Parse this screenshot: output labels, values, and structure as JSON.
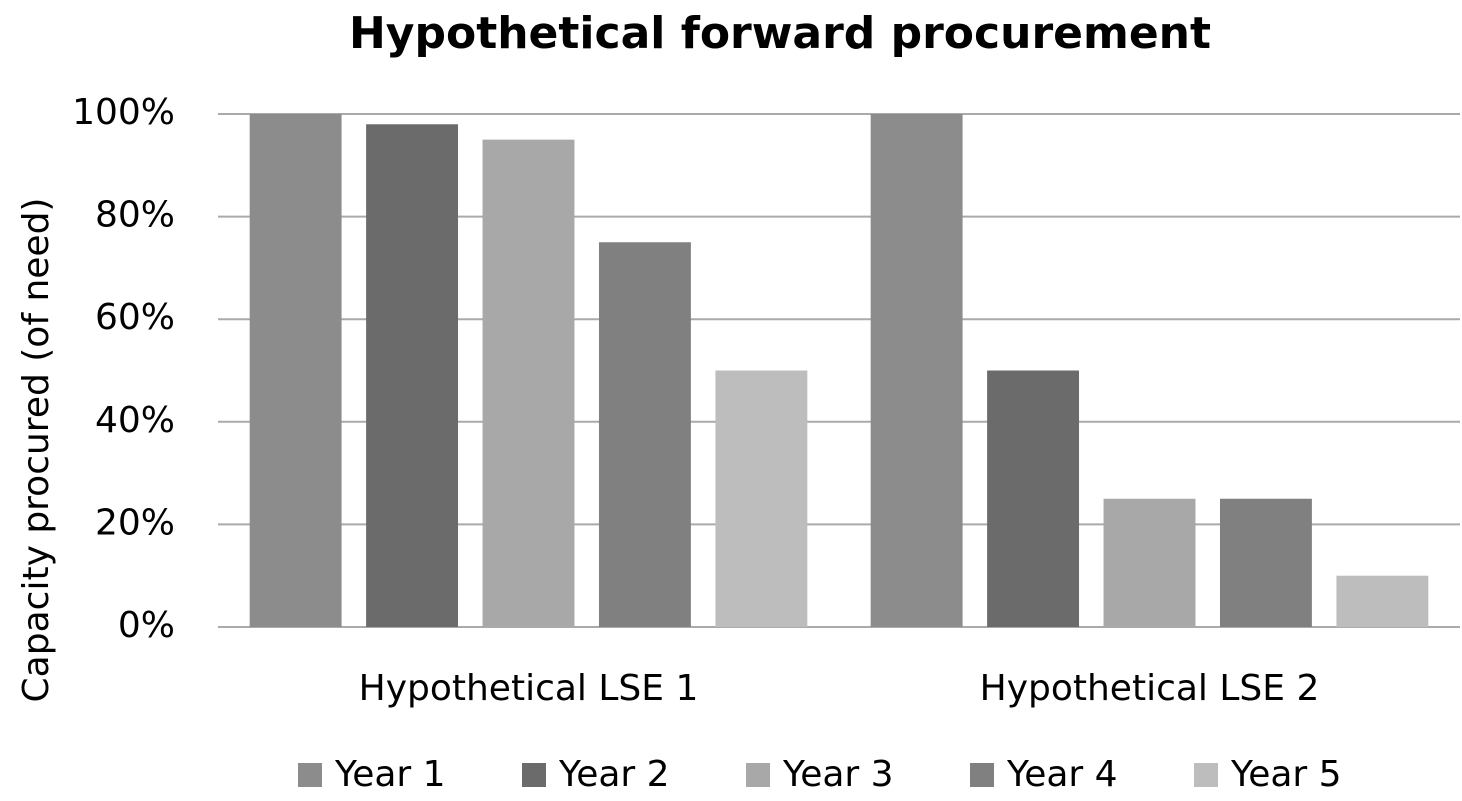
{
  "chart_data": {
    "type": "bar",
    "title": "Hypothetical forward procurement",
    "y_label": "Capacity procured (of need)",
    "categories": [
      "Hypothetical LSE 1",
      "Hypothetical LSE 2"
    ],
    "series": [
      {
        "name": "Year 1",
        "color": "#8c8c8c",
        "values": [
          100,
          100
        ]
      },
      {
        "name": "Year 2",
        "color": "#6b6b6b",
        "values": [
          98,
          50
        ]
      },
      {
        "name": "Year 3",
        "color": "#a8a8a8",
        "values": [
          95,
          25
        ]
      },
      {
        "name": "Year 4",
        "color": "#808080",
        "values": [
          75,
          25
        ]
      },
      {
        "name": "Year 5",
        "color": "#bdbdbd",
        "values": [
          50,
          10
        ]
      }
    ],
    "ylim": [
      0,
      100
    ],
    "yticks": [
      {
        "value": 0,
        "label": "0%"
      },
      {
        "value": 20,
        "label": "20%"
      },
      {
        "value": 40,
        "label": "40%"
      },
      {
        "value": 60,
        "label": "60%"
      },
      {
        "value": 80,
        "label": "80%"
      },
      {
        "value": 100,
        "label": "100%"
      }
    ],
    "grid": true,
    "legend": "bottom"
  }
}
